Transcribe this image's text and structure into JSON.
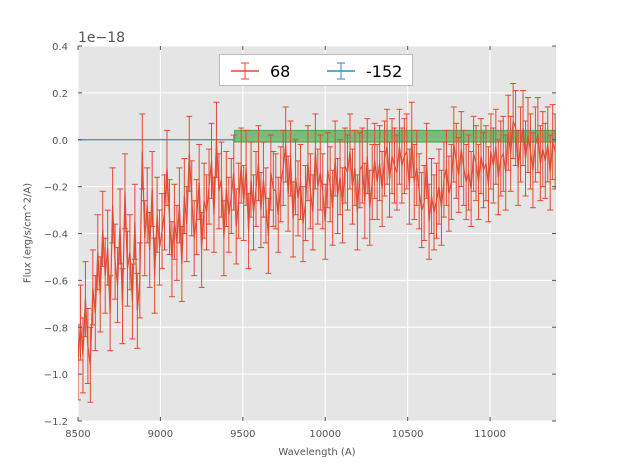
{
  "chart_data": {
    "type": "line",
    "xlabel": "Wavelength (A)",
    "ylabel": "Flux (erg/s/cm^2/A)",
    "y_offset_label": "1e−18",
    "xlim": [
      8500,
      11400
    ],
    "ylim": [
      -1.2,
      0.4
    ],
    "x_ticks": [
      8500,
      9000,
      9500,
      10000,
      10500,
      11000
    ],
    "x_tick_labels": [
      "8500",
      "9000",
      "9500",
      "10000",
      "10500",
      "11000"
    ],
    "y_ticks": [
      -1.2,
      -1.0,
      -0.8,
      -0.6,
      -0.4,
      -0.2,
      0.0,
      0.2,
      0.4
    ],
    "y_tick_labels": [
      "−1.2",
      "−1.0",
      "−0.8",
      "−0.6",
      "−0.4",
      "−0.2",
      "0.0",
      "0.2",
      "0.4"
    ],
    "grid": true,
    "legend_placement": "top-center",
    "colors": {
      "background": "#e5e5e5",
      "series_68": "#e24a33",
      "series_-152": "#348abd",
      "band": "#2ca02c"
    },
    "band": {
      "x": [
        9450,
        11400
      ],
      "y": [
        -0.01,
        0.04
      ]
    },
    "series": [
      {
        "name": "68",
        "color": "#e24a33",
        "x": [
          8500,
          8515,
          8530,
          8545,
          8560,
          8575,
          8590,
          8605,
          8620,
          8635,
          8650,
          8665,
          8680,
          8695,
          8710,
          8725,
          8740,
          8755,
          8770,
          8785,
          8800,
          8815,
          8830,
          8845,
          8860,
          8875,
          8890,
          8905,
          8920,
          8935,
          8950,
          8965,
          8980,
          8995,
          9010,
          9025,
          9040,
          9055,
          9070,
          9085,
          9100,
          9115,
          9130,
          9145,
          9160,
          9175,
          9190,
          9205,
          9220,
          9235,
          9250,
          9265,
          9280,
          9295,
          9310,
          9325,
          9340,
          9355,
          9370,
          9385,
          9400,
          9415,
          9430,
          9445,
          9460,
          9475,
          9490,
          9505,
          9520,
          9535,
          9550,
          9565,
          9580,
          9595,
          9610,
          9625,
          9640,
          9655,
          9670,
          9685,
          9700,
          9715,
          9730,
          9745,
          9760,
          9775,
          9790,
          9805,
          9820,
          9835,
          9850,
          9865,
          9880,
          9895,
          9910,
          9925,
          9940,
          9955,
          9970,
          9985,
          10000,
          10015,
          10030,
          10045,
          10060,
          10075,
          10090,
          10105,
          10120,
          10135,
          10150,
          10165,
          10180,
          10195,
          10210,
          10225,
          10240,
          10255,
          10270,
          10285,
          10300,
          10315,
          10330,
          10345,
          10360,
          10375,
          10390,
          10405,
          10420,
          10435,
          10450,
          10465,
          10480,
          10495,
          10510,
          10525,
          10540,
          10555,
          10570,
          10585,
          10600,
          10615,
          10630,
          10645,
          10660,
          10675,
          10690,
          10705,
          10720,
          10735,
          10750,
          10765,
          10780,
          10795,
          10810,
          10825,
          10840,
          10855,
          10870,
          10885,
          10900,
          10915,
          10930,
          10945,
          10960,
          10975,
          10990,
          11005,
          11020,
          11035,
          11050,
          11065,
          11080,
          11095,
          11110,
          11125,
          11140,
          11155,
          11170,
          11185,
          11200,
          11215,
          11230,
          11245,
          11260,
          11275,
          11290,
          11305,
          11320,
          11335,
          11350,
          11365,
          11380,
          11395
        ],
        "y": [
          -0.95,
          -0.78,
          -0.92,
          -0.68,
          -0.88,
          -0.96,
          -0.63,
          -0.74,
          -0.48,
          -0.66,
          -0.38,
          -0.58,
          -0.46,
          -0.74,
          -0.28,
          -0.52,
          -0.62,
          -0.37,
          -0.71,
          -0.22,
          -0.55,
          -0.48,
          -0.69,
          -0.35,
          -0.73,
          -0.6,
          -0.05,
          -0.42,
          -0.28,
          -0.47,
          -0.21,
          -0.58,
          -0.32,
          -0.46,
          -0.39,
          -0.31,
          -0.12,
          -0.33,
          -0.51,
          -0.35,
          -0.44,
          -0.28,
          -0.53,
          -0.24,
          -0.36,
          -0.06,
          -0.25,
          -0.42,
          -0.33,
          -0.18,
          -0.47,
          -0.26,
          -0.31,
          -0.2,
          -0.09,
          -0.32,
          0.0,
          -0.22,
          -0.17,
          -0.42,
          -0.21,
          -0.32,
          -0.24,
          -0.14,
          -0.37,
          -0.26,
          -0.11,
          -0.27,
          -0.12,
          -0.39,
          -0.17,
          -0.31,
          -0.21,
          -0.1,
          -0.3,
          -0.17,
          -0.28,
          -0.41,
          -0.14,
          -0.21,
          -0.22,
          -0.32,
          -0.19,
          -0.12,
          -0.02,
          -0.23,
          -0.08,
          -0.34,
          -0.16,
          -0.25,
          -0.18,
          -0.36,
          -0.27,
          -0.1,
          -0.22,
          -0.31,
          -0.05,
          -0.2,
          -0.14,
          -0.22,
          -0.35,
          -0.13,
          -0.19,
          -0.29,
          -0.08,
          -0.24,
          -0.16,
          -0.28,
          -0.11,
          -0.14,
          -0.05,
          -0.2,
          -0.12,
          -0.31,
          -0.13,
          -0.11,
          -0.26,
          -0.07,
          -0.29,
          -0.18,
          -0.09,
          -0.18,
          -0.1,
          -0.21,
          -0.08,
          -0.03,
          -0.17,
          -0.07,
          -0.11,
          -0.14,
          -0.03,
          -0.11,
          -0.07,
          -0.05,
          -0.2,
          0.0,
          -0.18,
          -0.12,
          -0.22,
          -0.3,
          -0.27,
          -0.09,
          -0.35,
          -0.24,
          -0.31,
          -0.26,
          -0.2,
          -0.29,
          -0.17,
          -0.12,
          -0.23,
          -0.18,
          -0.02,
          -0.09,
          -0.15,
          -0.04,
          -0.12,
          -0.18,
          -0.14,
          -0.21,
          -0.06,
          -0.1,
          -0.18,
          -0.07,
          -0.13,
          -0.1,
          -0.19,
          -0.05,
          -0.11,
          -0.03,
          -0.16,
          -0.08,
          -0.06,
          -0.14,
          0.03,
          -0.06,
          0.08,
          0.05,
          -0.12,
          -0.02,
          0.05,
          -0.08,
          0.02,
          -0.05,
          -0.13,
          -0.02,
          0.02,
          -0.1,
          -0.04,
          -0.09,
          -0.02,
          -0.14,
          -0.01,
          -0.05
        ],
        "yerr": 0.16
      },
      {
        "name": "-152",
        "color": "#348abd",
        "x": [
          8500,
          9450
        ],
        "y": [
          0.0,
          0.0
        ]
      }
    ]
  },
  "legend": {
    "items": [
      {
        "label": "68",
        "color": "#e24a33"
      },
      {
        "label": "-152",
        "color": "#348abd"
      }
    ]
  }
}
